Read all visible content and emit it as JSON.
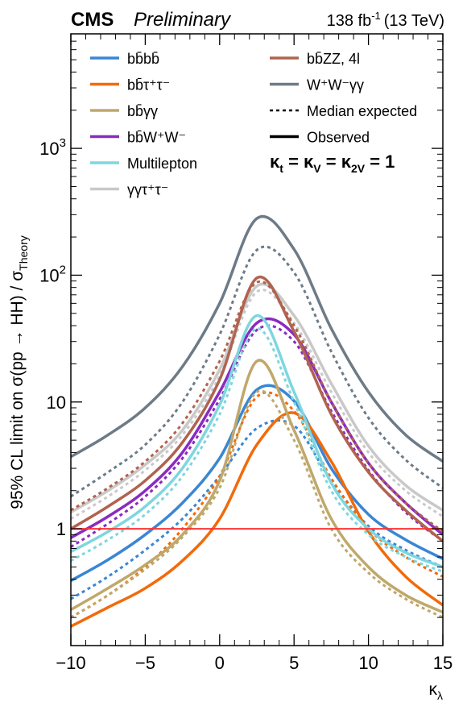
{
  "header": {
    "experiment": "CMS",
    "status": "Preliminary",
    "lumi": "138 fb",
    "lumi_exp": "-1",
    "energy": "(13 TeV)"
  },
  "legend": {
    "left": [
      {
        "label": "bb̄bb̄",
        "color": "#3a86d4",
        "style": "solid"
      },
      {
        "label": "bb̄τ⁺τ⁻",
        "color": "#f26a0a",
        "style": "solid"
      },
      {
        "label": "bb̄γγ",
        "color": "#bfa86b",
        "style": "solid"
      },
      {
        "label": "bb̄W⁺W⁻",
        "color": "#8a2bbf",
        "style": "solid"
      },
      {
        "label": "Multilepton",
        "color": "#7fd6de",
        "style": "solid"
      },
      {
        "label": "γγτ⁺τ⁻",
        "color": "#c9c9c9",
        "style": "solid"
      }
    ],
    "right": [
      {
        "label": "bb̄ZZ, 4l",
        "color": "#b0634f",
        "style": "solid"
      },
      {
        "label": "W⁺W⁻γγ",
        "color": "#6d7b87",
        "style": "solid"
      },
      {
        "label": "Median expected",
        "color": "#000000",
        "style": "dashed"
      },
      {
        "label": "Observed",
        "color": "#000000",
        "style": "solid"
      }
    ]
  },
  "annotation": "κ_t = κ_V = κ_2V = 1",
  "chart_data": {
    "type": "line",
    "title": "",
    "xlabel": "κλ",
    "ylabel": "95% CL limit on σ(pp → HH) / σTheory",
    "xlim": [
      -10,
      15
    ],
    "ylim": [
      0.12,
      8000
    ],
    "yscale": "log",
    "x_ticks": [
      "−10",
      "−5",
      "0",
      "5",
      "10",
      "15"
    ],
    "y_ticks": [
      "1",
      "10",
      "10²",
      "10³"
    ],
    "reference_line": {
      "y": 1,
      "color": "#ff3333"
    },
    "series": [
      {
        "name": "bb̄bb̄",
        "color": "#3a86d4",
        "kind": "observed",
        "x": [
          -10,
          -7.5,
          -5,
          -2.5,
          0,
          2.5,
          5,
          7.5,
          10,
          12.5,
          15
        ],
        "y": [
          0.39,
          0.57,
          0.9,
          1.6,
          3.6,
          12.5,
          10.2,
          3.0,
          1.3,
          0.82,
          0.58
        ]
      },
      {
        "name": "bb̄bb̄",
        "color": "#3a86d4",
        "kind": "expected",
        "x": [
          -10,
          -7.5,
          -5,
          -2.5,
          0,
          2.5,
          5,
          7.5,
          10,
          12.5,
          15
        ],
        "y": [
          0.28,
          0.42,
          0.68,
          1.2,
          2.6,
          6.2,
          6.5,
          2.4,
          1.05,
          0.68,
          0.5
        ]
      },
      {
        "name": "bb̄τ⁺τ⁻",
        "color": "#f26a0a",
        "kind": "observed",
        "x": [
          -10,
          -7.5,
          -5,
          -2.5,
          0,
          2.5,
          5,
          7.5,
          10,
          12.5,
          15
        ],
        "y": [
          0.17,
          0.24,
          0.34,
          0.56,
          1.2,
          4.6,
          8.2,
          3.4,
          0.95,
          0.42,
          0.25
        ]
      },
      {
        "name": "bb̄τ⁺τ⁻",
        "color": "#f26a0a",
        "kind": "expected",
        "x": [
          -10,
          -7.5,
          -5,
          -2.5,
          0,
          2.5,
          5,
          7.5,
          10,
          12.5,
          15
        ],
        "y": [
          0.2,
          0.3,
          0.5,
          1.0,
          2.6,
          11.0,
          8.5,
          2.5,
          1.0,
          0.6,
          0.42
        ]
      },
      {
        "name": "bb̄γγ",
        "color": "#bfa86b",
        "kind": "observed",
        "x": [
          -10,
          -7.5,
          -5,
          -2.5,
          0,
          2.5,
          5,
          7.5,
          10,
          12.5,
          15
        ],
        "y": [
          0.23,
          0.34,
          0.52,
          0.9,
          2.4,
          21.0,
          6.0,
          1.2,
          0.5,
          0.3,
          0.22
        ]
      },
      {
        "name": "bb̄γγ",
        "color": "#bfa86b",
        "kind": "expected",
        "x": [
          -10,
          -7.5,
          -5,
          -2.5,
          0,
          2.5,
          5,
          7.5,
          10,
          12.5,
          15
        ],
        "y": [
          0.2,
          0.3,
          0.48,
          0.86,
          2.1,
          12.0,
          5.0,
          1.0,
          0.45,
          0.28,
          0.2
        ]
      },
      {
        "name": "bb̄W⁺W⁻",
        "color": "#8a2bbf",
        "kind": "observed",
        "x": [
          -10,
          -7.5,
          -5,
          -2.5,
          0,
          2.5,
          5,
          7.5,
          10,
          12.5,
          15
        ],
        "y": [
          0.85,
          1.25,
          2.0,
          4.0,
          12.0,
          42.0,
          34.0,
          10.0,
          3.3,
          1.6,
          0.9
        ]
      },
      {
        "name": "bb̄W⁺W⁻",
        "color": "#8a2bbf",
        "kind": "expected",
        "x": [
          -10,
          -7.5,
          -5,
          -2.5,
          0,
          2.5,
          5,
          7.5,
          10,
          12.5,
          15
        ],
        "y": [
          0.72,
          1.1,
          1.8,
          3.6,
          10.5,
          37.0,
          30.0,
          8.5,
          2.9,
          1.35,
          0.8
        ]
      },
      {
        "name": "Multilepton",
        "color": "#7fd6de",
        "kind": "observed",
        "x": [
          -10,
          -7.5,
          -5,
          -2.5,
          0,
          2.5,
          5,
          7.5,
          10,
          12.5,
          15
        ],
        "y": [
          0.66,
          0.95,
          1.5,
          3.0,
          9.5,
          48.0,
          12.0,
          2.3,
          1.0,
          0.65,
          0.5
        ]
      },
      {
        "name": "Multilepton",
        "color": "#7fd6de",
        "kind": "expected",
        "x": [
          -10,
          -7.5,
          -5,
          -2.5,
          0,
          2.5,
          5,
          7.5,
          10,
          12.5,
          15
        ],
        "y": [
          0.56,
          0.82,
          1.3,
          2.6,
          8.0,
          38.0,
          10.0,
          2.0,
          0.9,
          0.6,
          0.46
        ]
      },
      {
        "name": "γγτ⁺τ⁻",
        "color": "#c9c9c9",
        "kind": "observed",
        "x": [
          -10,
          -7.5,
          -5,
          -2.5,
          0,
          2.5,
          5,
          7.5,
          10,
          12.5,
          15
        ],
        "y": [
          1.35,
          2.0,
          3.2,
          6.0,
          18.0,
          82.0,
          48.0,
          14.0,
          4.5,
          2.2,
          1.4
        ]
      },
      {
        "name": "γγτ⁺τ⁻",
        "color": "#c9c9c9",
        "kind": "expected",
        "x": [
          -10,
          -7.5,
          -5,
          -2.5,
          0,
          2.5,
          5,
          7.5,
          10,
          12.5,
          15
        ],
        "y": [
          1.2,
          1.8,
          2.9,
          5.5,
          16.0,
          74.0,
          42.0,
          12.0,
          4.0,
          2.0,
          1.25
        ]
      },
      {
        "name": "bb̄ZZ, 4l",
        "color": "#b0634f",
        "kind": "observed",
        "x": [
          -10,
          -7.5,
          -5,
          -2.5,
          0,
          2.5,
          5,
          7.5,
          10,
          12.5,
          15
        ],
        "y": [
          1.0,
          1.5,
          2.4,
          4.8,
          15.0,
          95.0,
          36.0,
          8.0,
          2.8,
          1.4,
          0.8
        ]
      },
      {
        "name": "bb̄ZZ, 4l",
        "color": "#b0634f",
        "kind": "expected",
        "x": [
          -10,
          -7.5,
          -5,
          -2.5,
          0,
          2.5,
          5,
          7.5,
          10,
          12.5,
          15
        ],
        "y": [
          1.4,
          2.1,
          3.4,
          6.8,
          21.0,
          88.0,
          40.0,
          10.0,
          3.3,
          1.6,
          0.95
        ]
      },
      {
        "name": "W⁺W⁻γγ",
        "color": "#6d7b87",
        "kind": "observed",
        "x": [
          -10,
          -7.5,
          -5,
          -2.5,
          0,
          2.5,
          5,
          7.5,
          10,
          12.5,
          15
        ],
        "y": [
          3.7,
          5.5,
          9.0,
          19.0,
          60.0,
          280.0,
          160.0,
          38.0,
          12.0,
          5.5,
          3.4
        ]
      },
      {
        "name": "W⁺W⁻γγ",
        "color": "#6d7b87",
        "kind": "expected",
        "x": [
          -10,
          -7.5,
          -5,
          -2.5,
          0,
          2.5,
          5,
          7.5,
          10,
          12.5,
          15
        ],
        "y": [
          1.8,
          2.8,
          4.6,
          10.0,
          34.0,
          158.0,
          105.0,
          25.0,
          7.5,
          3.5,
          2.1
        ]
      }
    ]
  }
}
